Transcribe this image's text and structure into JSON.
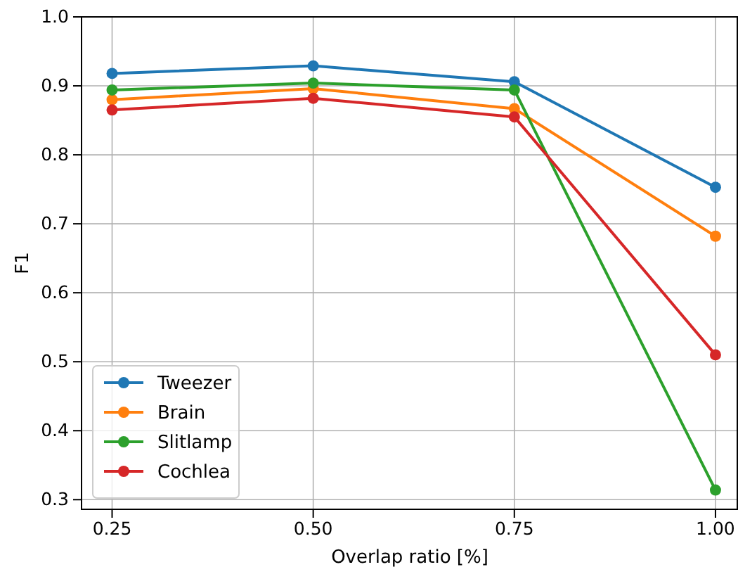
{
  "chart_data": {
    "type": "line",
    "xlabel": "Overlap ratio [%]",
    "ylabel": "F1",
    "x": [
      0.25,
      0.5,
      0.75,
      1.0
    ],
    "xlim": [
      0.212,
      1.028
    ],
    "xticks": [
      {
        "value": 0.25,
        "label": "0.25"
      },
      {
        "value": 0.5,
        "label": "0.50"
      },
      {
        "value": 0.75,
        "label": "0.75"
      },
      {
        "value": 1.0,
        "label": "1.00"
      }
    ],
    "ylim": [
      0.286,
      1.0
    ],
    "yticks": [
      {
        "value": 0.3,
        "label": "0.3"
      },
      {
        "value": 0.4,
        "label": "0.4"
      },
      {
        "value": 0.5,
        "label": "0.5"
      },
      {
        "value": 0.6,
        "label": "0.6"
      },
      {
        "value": 0.7,
        "label": "0.7"
      },
      {
        "value": 0.8,
        "label": "0.8"
      },
      {
        "value": 0.9,
        "label": "0.9"
      },
      {
        "value": 1.0,
        "label": "1.0"
      }
    ],
    "grid": true,
    "legend": "bottom left",
    "marker": "circle",
    "line_style": "solid",
    "series": [
      {
        "name": "Tweezer",
        "color": "#1f77b4",
        "values": [
          0.918,
          0.929,
          0.906,
          0.753
        ]
      },
      {
        "name": "Brain",
        "color": "#ff7f0e",
        "values": [
          0.88,
          0.896,
          0.867,
          0.682
        ]
      },
      {
        "name": "Slitlamp",
        "color": "#2ca02c",
        "values": [
          0.894,
          0.904,
          0.894,
          0.314
        ]
      },
      {
        "name": "Cochlea",
        "color": "#d62728",
        "values": [
          0.865,
          0.882,
          0.855,
          0.51
        ]
      }
    ]
  }
}
